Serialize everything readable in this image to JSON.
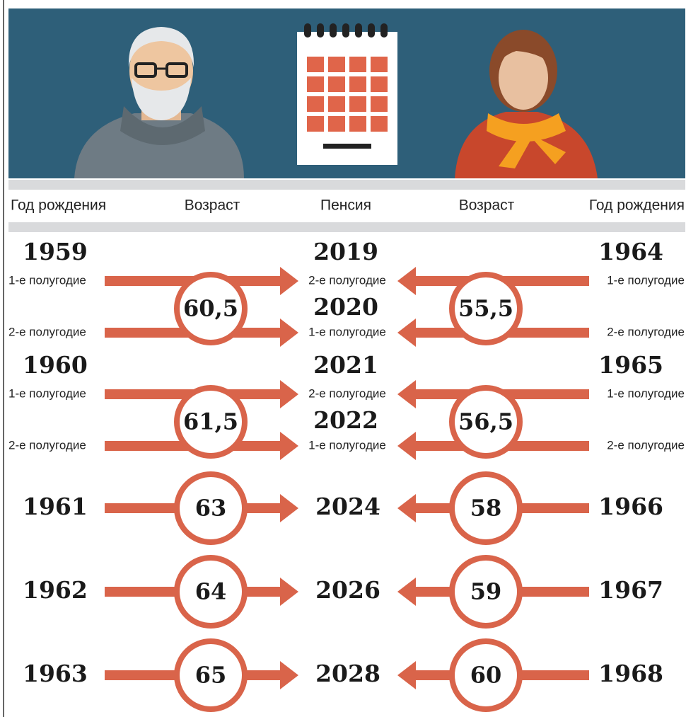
{
  "header": {
    "columns": [
      "Год рождения",
      "Возраст",
      "Пенсия",
      "Возраст",
      "Год рождения"
    ]
  },
  "rows": [
    {
      "men_year": "1959",
      "men_halves": [
        "1-е полугодие",
        "2-е полугодие"
      ],
      "men_age": "60,5",
      "pension": [
        {
          "year": "2019",
          "half": "2-е полугодие"
        },
        {
          "year": "2020",
          "half": "1-е полугодие"
        }
      ],
      "women_age": "55,5",
      "women_year": "1964",
      "women_halves": [
        "1-е полугодие",
        "2-е полугодие"
      ]
    },
    {
      "men_year": "1960",
      "men_halves": [
        "1-е полугодие",
        "2-е полугодие"
      ],
      "men_age": "61,5",
      "pension": [
        {
          "year": "2021",
          "half": "2-е полугодие"
        },
        {
          "year": "2022",
          "half": "1-е полугодие"
        }
      ],
      "women_age": "56,5",
      "women_year": "1965",
      "women_halves": [
        "1-е полугодие",
        "2-е полугодие"
      ]
    },
    {
      "men_year": "1961",
      "men_age": "63",
      "pension": [
        {
          "year": "2024"
        }
      ],
      "women_age": "58",
      "women_year": "1966"
    },
    {
      "men_year": "1962",
      "men_age": "64",
      "pension": [
        {
          "year": "2026"
        }
      ],
      "women_age": "59",
      "women_year": "1967"
    },
    {
      "men_year": "1963",
      "men_age": "65",
      "pension": [
        {
          "year": "2028"
        }
      ],
      "women_age": "60",
      "women_year": "1968"
    }
  ]
}
